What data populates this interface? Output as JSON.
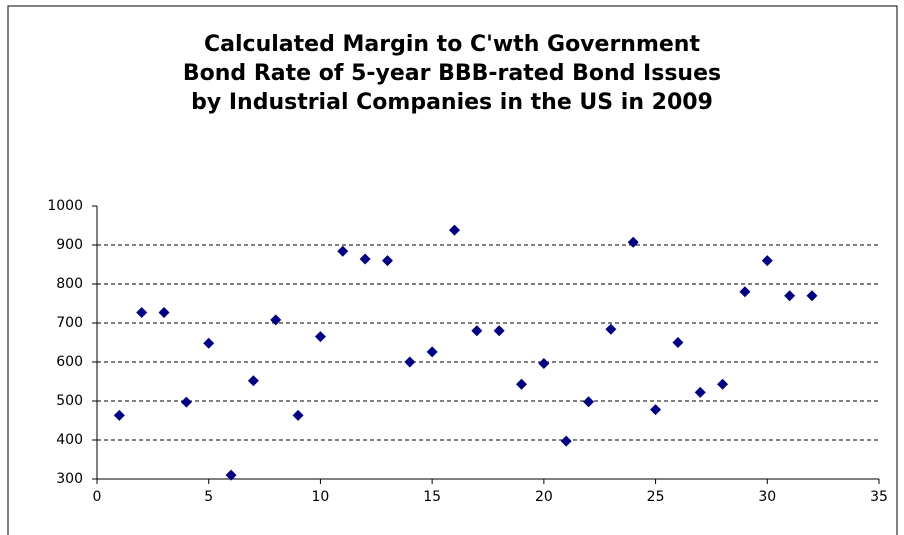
{
  "chart_data": {
    "type": "scatter",
    "title": [
      "Calculated Margin to C'wth Government",
      "Bond Rate of  5-year BBB-rated Bond Issues",
      "by Industrial Companies in the US in 2009"
    ],
    "x": [
      1,
      2,
      3,
      4,
      5,
      6,
      7,
      8,
      9,
      10,
      11,
      12,
      13,
      14,
      15,
      16,
      17,
      18,
      19,
      20,
      21,
      22,
      23,
      24,
      25,
      26,
      27,
      28,
      29,
      30,
      31,
      32
    ],
    "values": [
      463,
      727,
      727,
      497,
      648,
      310,
      552,
      708,
      463,
      665,
      884,
      864,
      860,
      600,
      626,
      938,
      680,
      680,
      543,
      596,
      397,
      498,
      684,
      907,
      478,
      650,
      522,
      543,
      780,
      860,
      770,
      770
    ],
    "color": "#000080",
    "xlim": [
      0,
      35
    ],
    "xticks": [
      0,
      5,
      10,
      15,
      20,
      25,
      30,
      35
    ],
    "ylim": [
      300,
      1000
    ],
    "yticks": [
      300,
      400,
      500,
      600,
      700,
      800,
      900,
      1000
    ],
    "grid": true
  }
}
